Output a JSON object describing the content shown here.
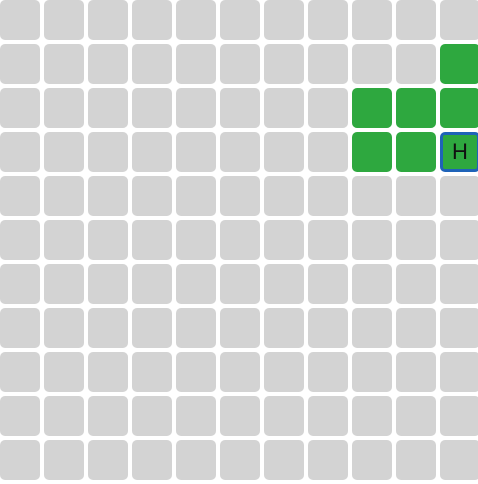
{
  "board": {
    "rows": 11,
    "cols": 11,
    "empty_color": "#d3d3d3",
    "filled_color": "#2ea83f",
    "active_border_color": "#1f63b8",
    "filled_cells": [
      {
        "row": 1,
        "col": 10
      },
      {
        "row": 2,
        "col": 8
      },
      {
        "row": 2,
        "col": 9
      },
      {
        "row": 2,
        "col": 10
      },
      {
        "row": 3,
        "col": 8
      },
      {
        "row": 3,
        "col": 9
      },
      {
        "row": 3,
        "col": 10
      }
    ],
    "active_cell": {
      "row": 3,
      "col": 10,
      "label": "H"
    }
  }
}
